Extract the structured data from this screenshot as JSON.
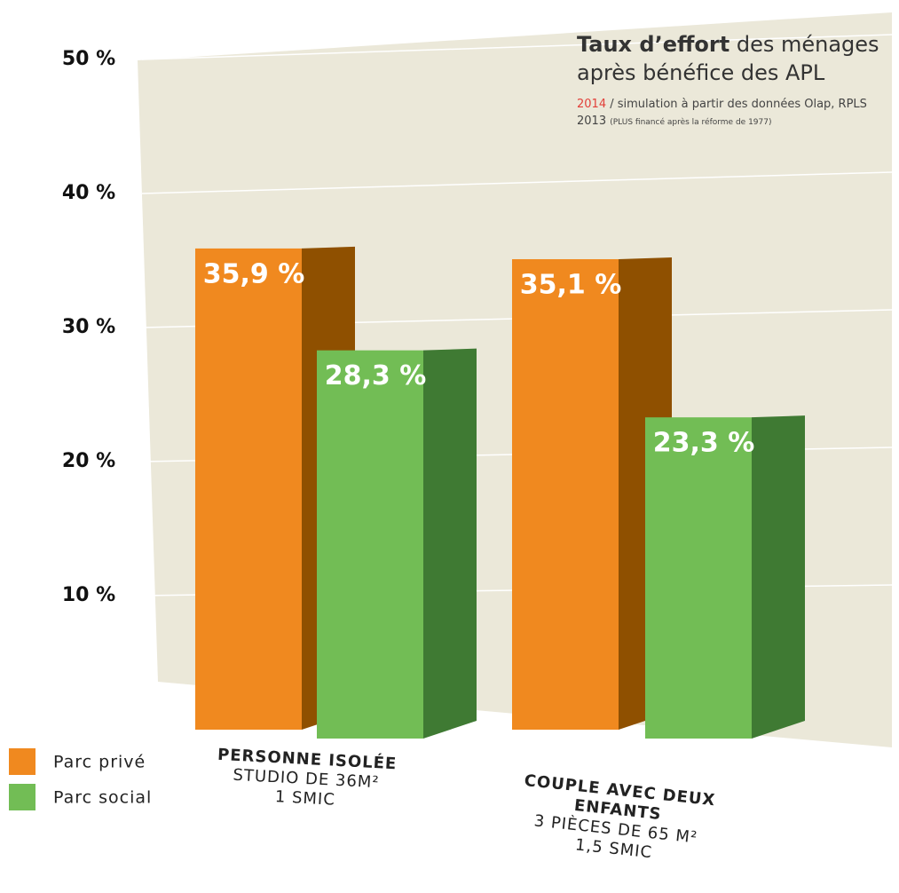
{
  "chart_data": {
    "type": "bar3d",
    "title_bold": "Taux d’effort",
    "title_rest": "des ménages après bénéfice des APL",
    "source_year": "2014",
    "source_text": "/ simulation à partir des données Olap, RPLS 2013",
    "source_note": "(PLUS financé après la réforme de 1977)",
    "categories": [
      "PERSONNE ISOLÉE",
      "COUPLE AVEC DEUX ENFANTS"
    ],
    "category_notes": [
      [
        "STUDIO DE 36M²",
        "1 SMIC"
      ],
      [
        "3 PIÈCES DE 65 M²",
        "1,5 SMIC"
      ]
    ],
    "series": [
      {
        "name": "Parc privé",
        "color": "#f0891f",
        "side_color": "#8f5000",
        "values": [
          35.9,
          35.1
        ],
        "value_labels": [
          "35,9 %",
          "35,1 %"
        ]
      },
      {
        "name": "Parc social",
        "color": "#72bd55",
        "side_color": "#3f7a33",
        "values": [
          28.3,
          23.3
        ],
        "value_labels": [
          "28,3 %",
          "23,3 %"
        ]
      }
    ],
    "ylim": [
      0,
      50
    ],
    "yticks": [
      {
        "value": 10,
        "label": "10 %"
      },
      {
        "value": 20,
        "label": "20 %"
      },
      {
        "value": 30,
        "label": "30 %"
      },
      {
        "value": 40,
        "label": "40 %"
      },
      {
        "value": 50,
        "label": "50 %"
      }
    ],
    "grid": true,
    "legend": "bottom-left"
  }
}
